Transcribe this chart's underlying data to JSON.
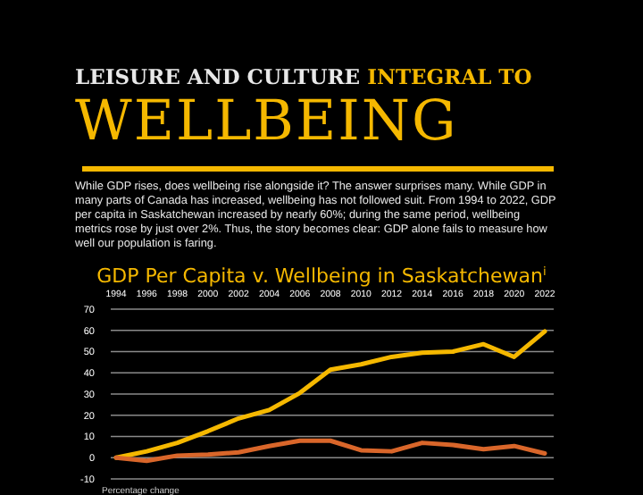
{
  "chart_data": {
    "type": "line",
    "title": "GDP Per Capita v. Wellbeing in Saskatchewan$^{i}$",
    "annotations": [
      "LEISURE AND CULTURE",
      "INTEGRAL TO",
      "WELLBEING",
      "While GDP rises, does wellbeing rise alongside it? The answer surprises many. While GDP in many parts of Canada has increased, wellbeing has not followed suit. From 1994 to 2022, GDP per capita in Saskatchewan increased by nearly 60%; during the same period, wellbeing metrics rose by just over 2%. Thus, the story becomes clear: GDP alone fails to measure how well our population is faring.",
      "Percentage change"
    ],
    "categories": [
      "1994",
      "1996",
      "1998",
      "2000",
      "2002",
      "2004",
      "2006",
      "2008",
      "2010",
      "2012",
      "2014",
      "2016",
      "2018",
      "2020",
      "2022"
    ],
    "series": [
      {
        "color": "#f5b800",
        "values": [
          0,
          3,
          7,
          12.5,
          18.5,
          22.5,
          30.5,
          41.5,
          44,
          47.5,
          49.5,
          50,
          53.5,
          47.5,
          59.5
        ]
      },
      {
        "color": "#d9662a",
        "values": [
          0,
          -1.5,
          1,
          1.5,
          2.5,
          5.5,
          8,
          8,
          3.5,
          3,
          7,
          6,
          4,
          5.5,
          2
        ]
      }
    ],
    "ylim": [
      -10,
      70
    ],
    "yticks": [
      -10,
      0,
      10,
      20,
      30,
      40,
      50,
      60,
      70
    ],
    "grid": "y",
    "line_style": "solid",
    "marker": "none"
  }
}
